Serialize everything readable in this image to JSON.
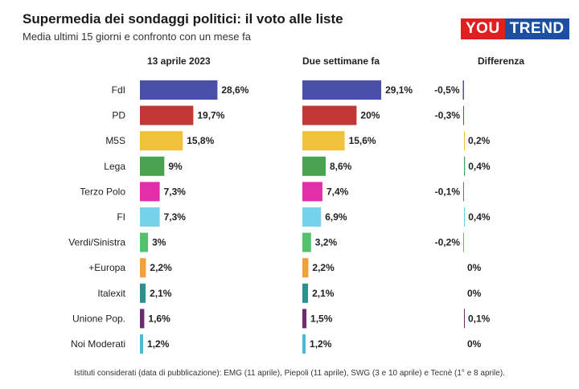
{
  "header": {
    "title": "Supermedia dei sondaggi politici: il voto alle liste",
    "subtitle": "Media ultimi 15 giorni e confronto con un mese fa"
  },
  "logo": {
    "part1": "YOU",
    "part2": "TREND"
  },
  "columns": {
    "current": "13 aprile 2023",
    "previous": "Due settimane fa",
    "diff": "Differenza"
  },
  "footer": "Istituti considerati (data di pubblicazione): EMG (11 aprile), Piepoli (11 aprile), SWG (3 e 10 aprile) e Tecnè (1° e 8 aprile).",
  "chart_data": {
    "type": "bar",
    "orientation": "horizontal",
    "categories": [
      "FdI",
      "PD",
      "M5S",
      "Lega",
      "Terzo Polo",
      "FI",
      "Verdi/Sinistra",
      "+Europa",
      "Italexit",
      "Unione Pop.",
      "Noi Moderati"
    ],
    "colors": [
      "#4a4fa8",
      "#c23636",
      "#f0c23c",
      "#49a24f",
      "#e32ea9",
      "#75d2ea",
      "#52c26b",
      "#f0a03c",
      "#2e8f8f",
      "#6e2a6e",
      "#4fb8d8"
    ],
    "series": [
      {
        "name": "13 aprile 2023",
        "values": [
          28.6,
          19.7,
          15.8,
          9,
          7.3,
          7.3,
          3,
          2.2,
          2.1,
          1.6,
          1.2
        ],
        "labels": [
          "28,6%",
          "19,7%",
          "15,8%",
          "9%",
          "7,3%",
          "7,3%",
          "3%",
          "2,2%",
          "2,1%",
          "1,6%",
          "1,2%"
        ]
      },
      {
        "name": "Due settimane fa",
        "values": [
          29.1,
          20,
          15.6,
          8.6,
          7.4,
          6.9,
          3.2,
          2.2,
          2.1,
          1.5,
          1.2
        ],
        "labels": [
          "29,1%",
          "20%",
          "15,6%",
          "8,6%",
          "7,4%",
          "6,9%",
          "3,2%",
          "2,2%",
          "2,1%",
          "1,5%",
          "1,2%"
        ]
      },
      {
        "name": "Differenza",
        "values": [
          -0.5,
          -0.3,
          0.2,
          0.4,
          -0.1,
          0.4,
          -0.2,
          0,
          0,
          0.1,
          0
        ],
        "labels": [
          "-0,5%",
          "-0,3%",
          "0,2%",
          "0,4%",
          "-0,1%",
          "0,4%",
          "-0,2%",
          "0%",
          "0%",
          "0,1%",
          "0%"
        ]
      }
    ]
  }
}
